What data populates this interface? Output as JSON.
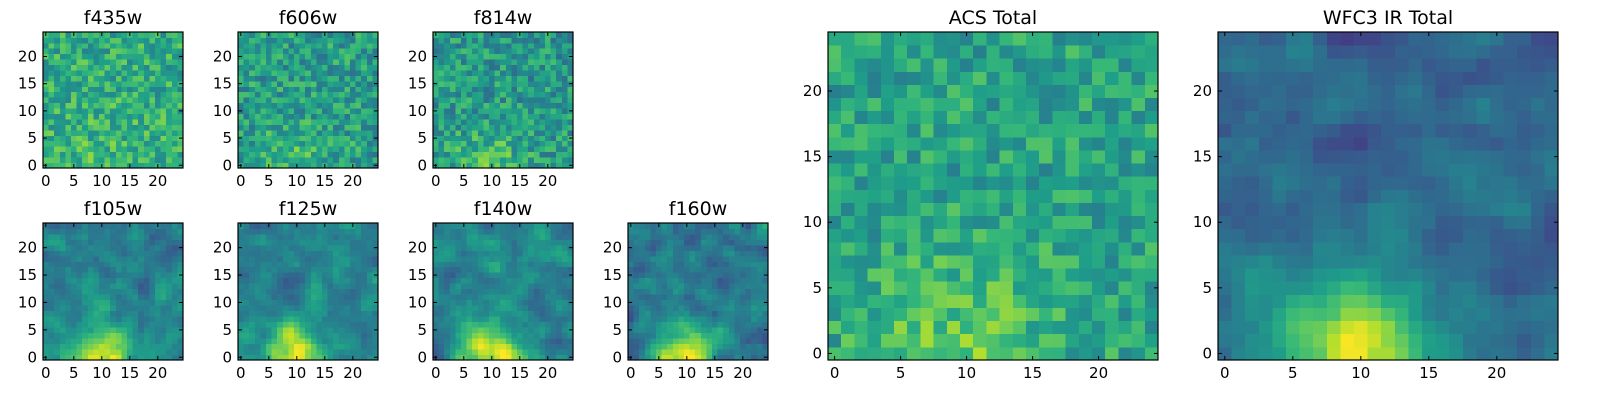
{
  "chart_data": [
    {
      "type": "heatmap",
      "title": "f435w",
      "grid_size": 25,
      "xlim": [
        -0.5,
        24.5
      ],
      "ylim": [
        -0.5,
        24.5
      ],
      "xticks": [
        0,
        5,
        10,
        15,
        20
      ],
      "yticks": [
        0,
        5,
        10,
        15,
        20
      ],
      "colormap": "viridis",
      "texture": "noisy",
      "source_sigma": 7,
      "source_strength": 0.05,
      "noise": 0.35,
      "offset": 0.62,
      "seed": 11
    },
    {
      "type": "heatmap",
      "title": "f606w",
      "grid_size": 25,
      "xlim": [
        -0.5,
        24.5
      ],
      "ylim": [
        -0.5,
        24.5
      ],
      "xticks": [
        0,
        5,
        10,
        15,
        20
      ],
      "yticks": [
        0,
        5,
        10,
        15,
        20
      ],
      "colormap": "viridis",
      "texture": "noisy",
      "source_sigma": 5,
      "source_strength": 0.14,
      "noise": 0.36,
      "offset": 0.55,
      "seed": 22
    },
    {
      "type": "heatmap",
      "title": "f814w",
      "grid_size": 25,
      "xlim": [
        -0.5,
        24.5
      ],
      "ylim": [
        -0.5,
        24.5
      ],
      "xticks": [
        0,
        5,
        10,
        15,
        20
      ],
      "yticks": [
        0,
        5,
        10,
        15,
        20
      ],
      "colormap": "viridis",
      "texture": "noisy",
      "source_sigma": 5,
      "source_strength": 0.16,
      "noise": 0.36,
      "offset": 0.53,
      "seed": 33
    },
    {
      "type": "heatmap",
      "title": "f105w",
      "grid_size": 25,
      "xlim": [
        -0.5,
        24.5
      ],
      "ylim": [
        -0.5,
        24.5
      ],
      "xticks": [
        0,
        5,
        10,
        15,
        20
      ],
      "yticks": [
        0,
        5,
        10,
        15,
        20
      ],
      "colormap": "viridis",
      "texture": "smooth",
      "source_sigma": 4,
      "source_strength": 0.55,
      "noise": 0.32,
      "offset": 0.44,
      "seed": 44
    },
    {
      "type": "heatmap",
      "title": "f125w",
      "grid_size": 25,
      "xlim": [
        -0.5,
        24.5
      ],
      "ylim": [
        -0.5,
        24.5
      ],
      "xticks": [
        0,
        5,
        10,
        15,
        20
      ],
      "yticks": [
        0,
        5,
        10,
        15,
        20
      ],
      "colormap": "viridis",
      "texture": "smooth",
      "source_sigma": 4,
      "source_strength": 0.55,
      "noise": 0.32,
      "offset": 0.44,
      "seed": 55
    },
    {
      "type": "heatmap",
      "title": "f140w",
      "grid_size": 25,
      "xlim": [
        -0.5,
        24.5
      ],
      "ylim": [
        -0.5,
        24.5
      ],
      "xticks": [
        0,
        5,
        10,
        15,
        20
      ],
      "yticks": [
        0,
        5,
        10,
        15,
        20
      ],
      "colormap": "viridis",
      "texture": "smooth",
      "source_sigma": 4,
      "source_strength": 0.55,
      "noise": 0.34,
      "offset": 0.46,
      "seed": 66
    },
    {
      "type": "heatmap",
      "title": "f160w",
      "grid_size": 25,
      "xlim": [
        -0.5,
        24.5
      ],
      "ylim": [
        -0.5,
        24.5
      ],
      "xticks": [
        0,
        5,
        10,
        15,
        20
      ],
      "yticks": [
        0,
        5,
        10,
        15,
        20
      ],
      "colormap": "viridis",
      "texture": "smooth",
      "source_sigma": 4,
      "source_strength": 0.6,
      "noise": 0.34,
      "offset": 0.4,
      "seed": 77
    },
    {
      "type": "heatmap",
      "title": "ACS Total",
      "grid_size": 25,
      "xlim": [
        -0.5,
        24.5
      ],
      "ylim": [
        -0.5,
        24.5
      ],
      "xticks": [
        0,
        5,
        10,
        15,
        20
      ],
      "yticks": [
        0,
        5,
        10,
        15,
        20
      ],
      "colormap": "viridis",
      "texture": "noisy",
      "source_sigma": 5,
      "source_strength": 0.18,
      "noise": 0.3,
      "offset": 0.58,
      "seed": 88
    },
    {
      "type": "heatmap",
      "title": "WFC3 IR Total",
      "grid_size": 25,
      "xlim": [
        -0.5,
        24.5
      ],
      "ylim": [
        -0.5,
        24.5
      ],
      "xticks": [
        0,
        5,
        10,
        15,
        20
      ],
      "yticks": [
        0,
        5,
        10,
        15,
        20
      ],
      "colormap": "viridis",
      "texture": "smooth",
      "source_sigma": 4,
      "source_strength": 0.65,
      "noise": 0.26,
      "offset": 0.34,
      "seed": 99
    }
  ]
}
